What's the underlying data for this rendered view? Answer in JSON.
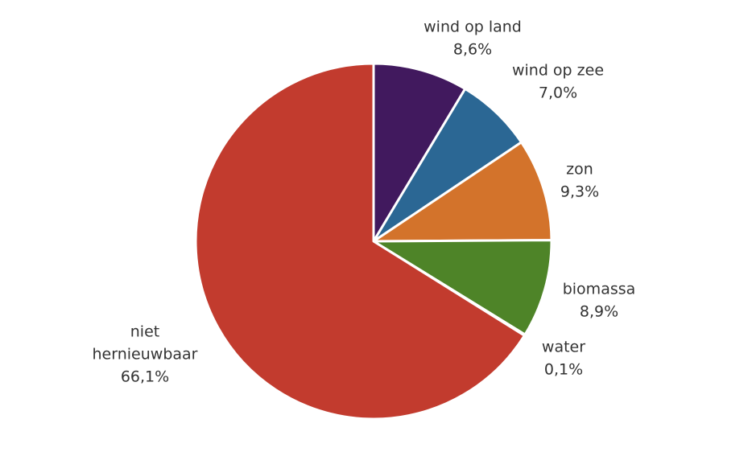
{
  "chart_data": {
    "type": "pie",
    "title": "",
    "start_angle_deg": 0,
    "direction": "clockwise",
    "slices": [
      {
        "label": [
          "wind op land"
        ],
        "value": 8.6,
        "value_label": "8,6%",
        "color": "#41195e"
      },
      {
        "label": [
          "wind op zee"
        ],
        "value": 7.0,
        "value_label": "7,0%",
        "color": "#2b6794"
      },
      {
        "label": [
          "zon"
        ],
        "value": 9.3,
        "value_label": "9,3%",
        "color": "#d3732b"
      },
      {
        "label": [
          "biomassa"
        ],
        "value": 8.9,
        "value_label": "8,9%",
        "color": "#4e8428"
      },
      {
        "label": [
          "water"
        ],
        "value": 0.1,
        "value_label": "0,1%",
        "color": "#2a8fb8"
      },
      {
        "label": [
          "niet",
          "hernieuwbaar"
        ],
        "value": 66.1,
        "value_label": "66,1%",
        "color": "#c23b2e"
      }
    ]
  }
}
